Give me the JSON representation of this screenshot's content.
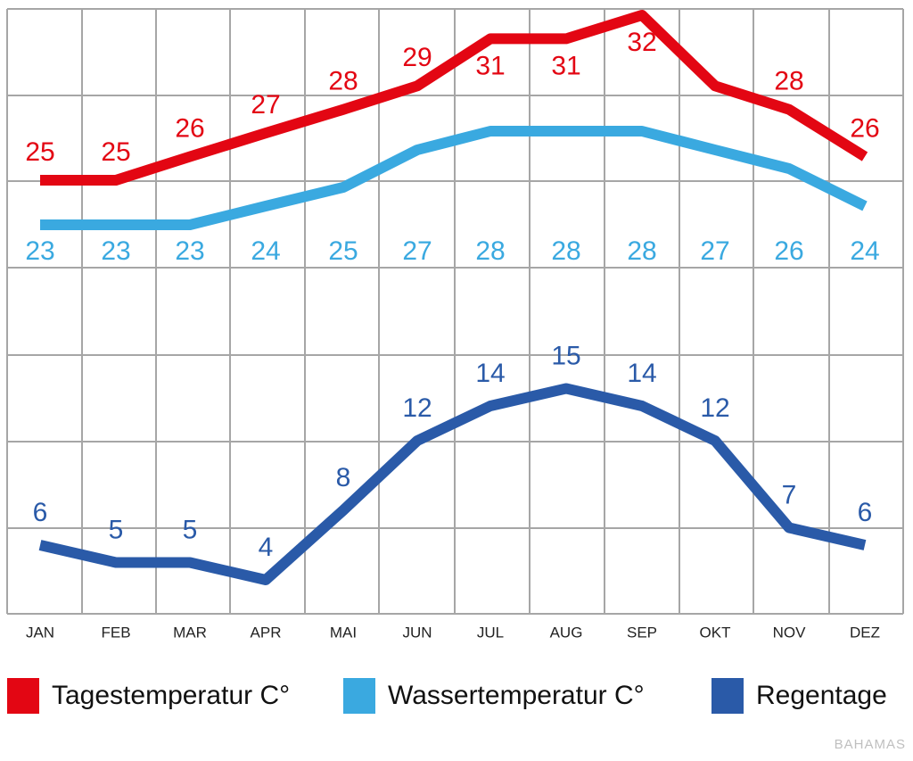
{
  "chart_data": {
    "type": "line",
    "categories": [
      "JAN",
      "FEB",
      "MAR",
      "APR",
      "MAI",
      "JUN",
      "JUL",
      "AUG",
      "SEP",
      "OKT",
      "NOV",
      "DEZ"
    ],
    "series": [
      {
        "name": "Tagestemperatur C°",
        "color": "#e30613",
        "values": [
          25,
          25,
          26,
          27,
          28,
          29,
          31,
          31,
          32,
          29,
          28,
          26
        ],
        "labels": [
          "25",
          "25",
          "26",
          "27",
          "28",
          "29",
          "31",
          "31",
          "32",
          "",
          "28",
          "26"
        ]
      },
      {
        "name": "Wassertemperatur C°",
        "color": "#3aa9e0",
        "values": [
          23,
          23,
          23,
          24,
          25,
          27,
          28,
          28,
          28,
          27,
          26,
          24
        ],
        "labels": [
          "23",
          "23",
          "23",
          "24",
          "25",
          "27",
          "28",
          "28",
          "28",
          "27",
          "26",
          "24"
        ]
      },
      {
        "name": "Regentage",
        "color": "#2a5aa8",
        "values": [
          6,
          5,
          5,
          4,
          8,
          12,
          14,
          15,
          14,
          12,
          7,
          6
        ],
        "labels": [
          "6",
          "5",
          "5",
          "4",
          "8",
          "12",
          "14",
          "15",
          "14",
          "12",
          "7",
          "6"
        ]
      }
    ],
    "grid": true,
    "legend_position": "bottom"
  },
  "legend": {
    "items": [
      {
        "label": "Tagestemperatur C°",
        "color": "#e30613"
      },
      {
        "label": "Wassertemperatur C°",
        "color": "#3aa9e0"
      },
      {
        "label": "Regentage",
        "color": "#2a5aa8"
      }
    ]
  },
  "caption": "BAHAMAS"
}
